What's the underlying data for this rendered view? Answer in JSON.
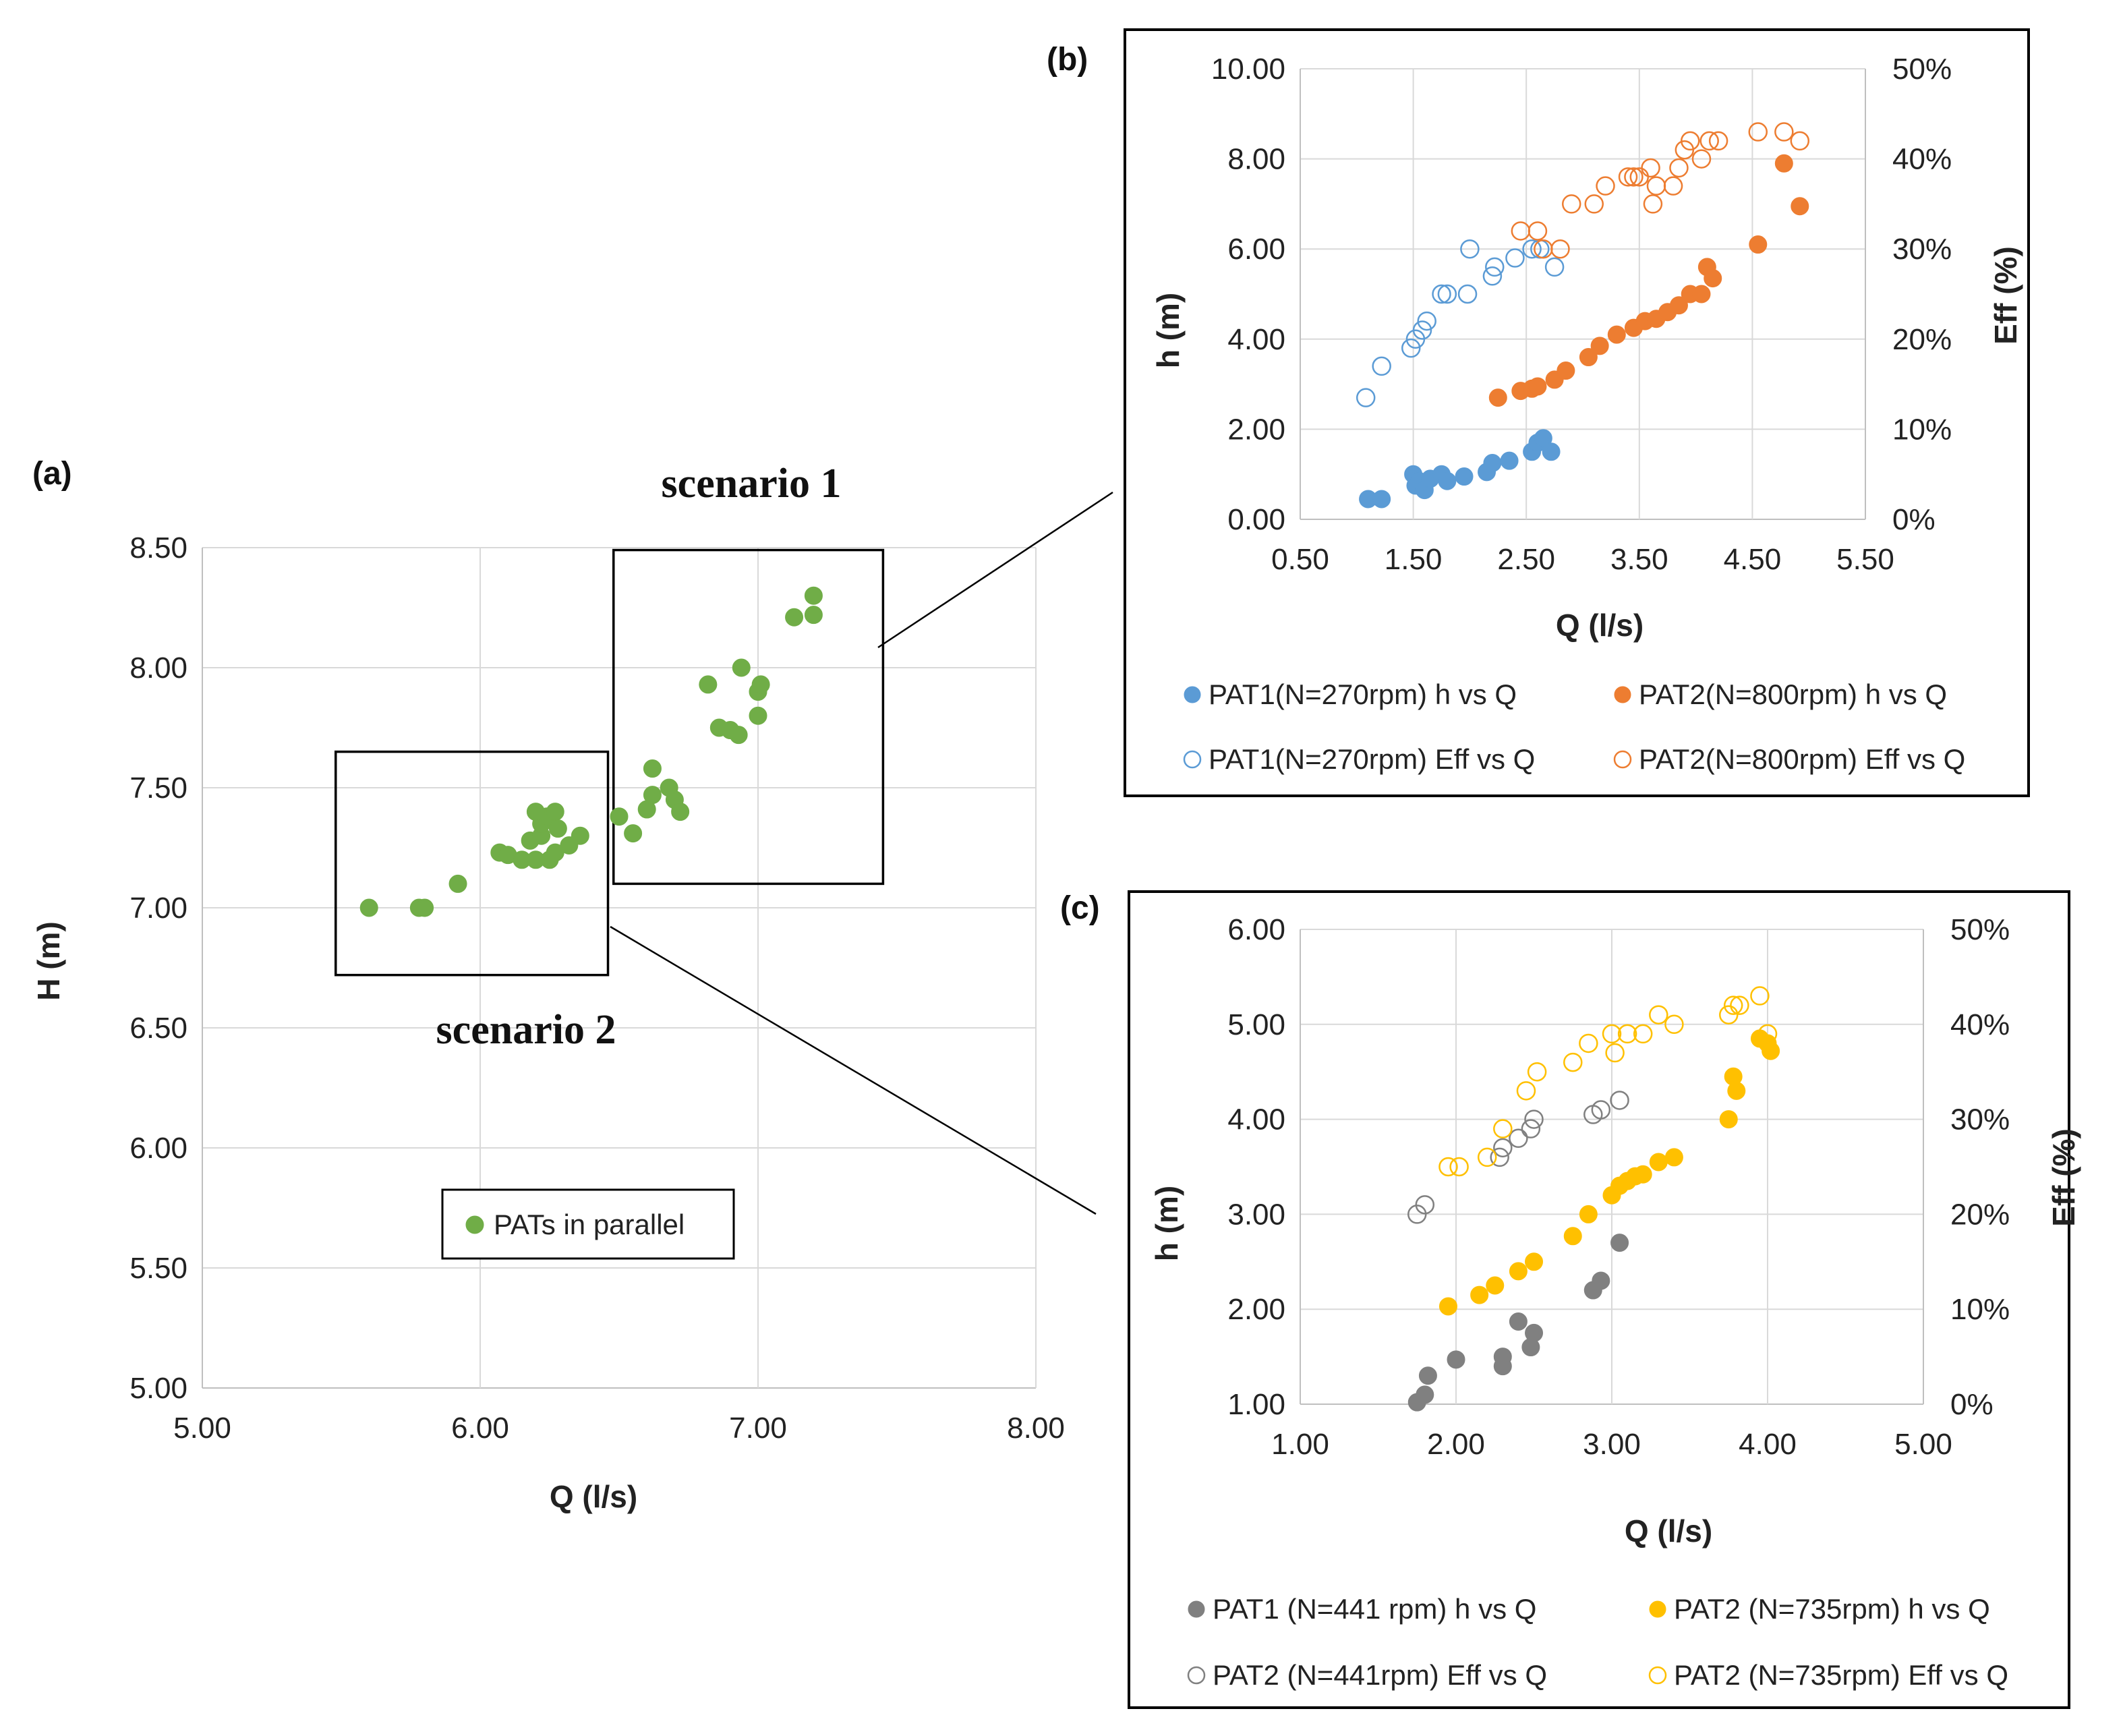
{
  "colors": {
    "green": "#70AD47",
    "blue": "#5B9BD5",
    "orange": "#ED7D31",
    "gray": "#808080",
    "gold": "#FFC000"
  },
  "chart_data": [
    {
      "id": "a",
      "panel_label": "(a)",
      "type": "scatter",
      "xlabel": "Q (l/s)",
      "ylabel": "H (m)",
      "xlim": [
        5.0,
        8.0
      ],
      "ylim": [
        5.0,
        8.5
      ],
      "xticks": [
        "5.00",
        "6.00",
        "7.00",
        "8.00"
      ],
      "yticks": [
        "5.00",
        "5.50",
        "6.00",
        "6.50",
        "7.00",
        "7.50",
        "8.00",
        "8.50"
      ],
      "annotations": {
        "scenario1": "scenario 1",
        "scenario2": "scenario 2"
      },
      "scenario_boxes": [
        {
          "name": "scenario 1",
          "x": [
            6.48,
            7.45
          ],
          "y": [
            7.1,
            8.49
          ]
        },
        {
          "name": "scenario 2",
          "x": [
            5.48,
            6.46
          ],
          "y": [
            6.72,
            7.65
          ]
        }
      ],
      "series": [
        {
          "name": "PATs in parallel",
          "color": "#70AD47",
          "filled": true,
          "points": [
            [
              5.6,
              7.0
            ],
            [
              5.78,
              7.0
            ],
            [
              5.8,
              7.0
            ],
            [
              5.92,
              7.1
            ],
            [
              6.07,
              7.23
            ],
            [
              6.1,
              7.22
            ],
            [
              6.15,
              7.2
            ],
            [
              6.2,
              7.2
            ],
            [
              6.18,
              7.28
            ],
            [
              6.22,
              7.3
            ],
            [
              6.25,
              7.2
            ],
            [
              6.27,
              7.23
            ],
            [
              6.22,
              7.35
            ],
            [
              6.24,
              7.38
            ],
            [
              6.2,
              7.4
            ],
            [
              6.27,
              7.4
            ],
            [
              6.28,
              7.33
            ],
            [
              6.32,
              7.26
            ],
            [
              6.36,
              7.3
            ],
            [
              6.5,
              7.38
            ],
            [
              6.55,
              7.31
            ],
            [
              6.6,
              7.41
            ],
            [
              6.62,
              7.47
            ],
            [
              6.62,
              7.58
            ],
            [
              6.68,
              7.5
            ],
            [
              6.7,
              7.45
            ],
            [
              6.72,
              7.4
            ],
            [
              6.82,
              7.93
            ],
            [
              6.86,
              7.75
            ],
            [
              6.9,
              7.74
            ],
            [
              6.93,
              7.72
            ],
            [
              6.94,
              8.0
            ],
            [
              7.0,
              7.8
            ],
            [
              7.0,
              7.9
            ],
            [
              7.01,
              7.93
            ],
            [
              7.13,
              8.21
            ],
            [
              7.2,
              8.22
            ],
            [
              7.2,
              8.3
            ]
          ]
        }
      ]
    },
    {
      "id": "b",
      "panel_label": "(b)",
      "type": "scatter",
      "xlabel": "Q (l/s)",
      "ylabel": "h (m)",
      "y2label": "Eff (%)",
      "xlim": [
        0.5,
        5.5
      ],
      "ylim": [
        0.0,
        10.0
      ],
      "y2lim": [
        0,
        50
      ],
      "xticks": [
        "0.50",
        "1.50",
        "2.50",
        "3.50",
        "4.50",
        "5.50"
      ],
      "yticks": [
        "0.00",
        "2.00",
        "4.00",
        "6.00",
        "8.00",
        "10.00"
      ],
      "y2ticks": [
        "0%",
        "10%",
        "20%",
        "30%",
        "40%",
        "50%"
      ],
      "series": [
        {
          "name": "PAT1(N=270rpm) h vs Q",
          "color": "#5B9BD5",
          "filled": true,
          "axis": "left",
          "points": [
            [
              1.1,
              0.45
            ],
            [
              1.22,
              0.45
            ],
            [
              1.5,
              1.0
            ],
            [
              1.52,
              0.75
            ],
            [
              1.55,
              0.85
            ],
            [
              1.6,
              0.65
            ],
            [
              1.65,
              0.9
            ],
            [
              1.75,
              1.0
            ],
            [
              1.8,
              0.85
            ],
            [
              1.95,
              0.95
            ],
            [
              2.15,
              1.05
            ],
            [
              2.2,
              1.25
            ],
            [
              2.35,
              1.3
            ],
            [
              2.55,
              1.5
            ],
            [
              2.6,
              1.7
            ],
            [
              2.65,
              1.8
            ],
            [
              2.72,
              1.5
            ]
          ]
        },
        {
          "name": "PAT2(N=800rpm) h vs Q",
          "color": "#ED7D31",
          "filled": true,
          "axis": "left",
          "points": [
            [
              2.25,
              2.7
            ],
            [
              2.45,
              2.85
            ],
            [
              2.55,
              2.9
            ],
            [
              2.6,
              2.95
            ],
            [
              2.75,
              3.1
            ],
            [
              2.85,
              3.3
            ],
            [
              3.05,
              3.6
            ],
            [
              3.15,
              3.85
            ],
            [
              3.3,
              4.1
            ],
            [
              3.45,
              4.25
            ],
            [
              3.55,
              4.4
            ],
            [
              3.65,
              4.45
            ],
            [
              3.75,
              4.6
            ],
            [
              3.85,
              4.75
            ],
            [
              3.95,
              5.0
            ],
            [
              4.05,
              5.0
            ],
            [
              4.1,
              5.6
            ],
            [
              4.15,
              5.35
            ],
            [
              4.55,
              6.1
            ],
            [
              4.78,
              7.9
            ],
            [
              4.92,
              6.95
            ]
          ]
        },
        {
          "name": "PAT1(N=270rpm) Eff vs Q",
          "color": "#5B9BD5",
          "filled": false,
          "axis": "right",
          "points": [
            [
              1.08,
              13.5
            ],
            [
              1.22,
              17
            ],
            [
              1.48,
              19
            ],
            [
              1.52,
              20
            ],
            [
              1.58,
              21
            ],
            [
              1.62,
              22
            ],
            [
              1.75,
              25
            ],
            [
              1.8,
              25
            ],
            [
              1.98,
              25
            ],
            [
              2.0,
              30
            ],
            [
              2.2,
              27
            ],
            [
              2.22,
              28
            ],
            [
              2.4,
              29
            ],
            [
              2.55,
              30
            ],
            [
              2.62,
              30
            ],
            [
              2.75,
              28
            ]
          ]
        },
        {
          "name": "PAT2(N=800rpm) Eff vs Q",
          "color": "#ED7D31",
          "filled": false,
          "axis": "right",
          "points": [
            [
              2.45,
              32
            ],
            [
              2.6,
              32
            ],
            [
              2.65,
              30
            ],
            [
              2.8,
              30
            ],
            [
              2.9,
              35
            ],
            [
              3.1,
              35
            ],
            [
              3.2,
              37
            ],
            [
              3.4,
              38
            ],
            [
              3.45,
              38
            ],
            [
              3.5,
              38
            ],
            [
              3.6,
              39
            ],
            [
              3.62,
              35
            ],
            [
              3.65,
              37
            ],
            [
              3.8,
              37
            ],
            [
              3.85,
              39
            ],
            [
              3.9,
              41
            ],
            [
              3.95,
              42
            ],
            [
              4.05,
              40
            ],
            [
              4.12,
              42
            ],
            [
              4.2,
              42
            ],
            [
              4.55,
              43
            ],
            [
              4.78,
              43
            ],
            [
              4.92,
              42
            ]
          ]
        }
      ]
    },
    {
      "id": "c",
      "panel_label": "(c)",
      "type": "scatter",
      "xlabel": "Q (l/s)",
      "ylabel": "h (m)",
      "y2label": "Eff (%)",
      "xlim": [
        1.0,
        5.0
      ],
      "ylim": [
        1.0,
        6.0
      ],
      "y2lim": [
        0,
        50
      ],
      "xticks": [
        "1.00",
        "2.00",
        "3.00",
        "4.00",
        "5.00"
      ],
      "yticks": [
        "1.00",
        "2.00",
        "3.00",
        "4.00",
        "5.00",
        "6.00"
      ],
      "y2ticks": [
        "0%",
        "10%",
        "20%",
        "30%",
        "40%",
        "50%"
      ],
      "series": [
        {
          "name": "PAT1 (N=441 rpm) h vs Q",
          "color": "#808080",
          "filled": true,
          "axis": "left",
          "points": [
            [
              1.75,
              1.02
            ],
            [
              1.8,
              1.1
            ],
            [
              1.82,
              1.3
            ],
            [
              2.0,
              1.47
            ],
            [
              2.3,
              1.4
            ],
            [
              2.3,
              1.5
            ],
            [
              2.4,
              1.87
            ],
            [
              2.48,
              1.6
            ],
            [
              2.5,
              1.75
            ],
            [
              2.88,
              2.2
            ],
            [
              2.93,
              2.3
            ],
            [
              3.05,
              2.7
            ]
          ]
        },
        {
          "name": "PAT2 (N=735rpm) h vs Q",
          "color": "#FFC000",
          "filled": true,
          "axis": "left",
          "points": [
            [
              1.95,
              2.03
            ],
            [
              2.15,
              2.15
            ],
            [
              2.25,
              2.25
            ],
            [
              2.4,
              2.4
            ],
            [
              2.5,
              2.5
            ],
            [
              2.75,
              2.77
            ],
            [
              2.85,
              3.0
            ],
            [
              3.0,
              3.2
            ],
            [
              3.05,
              3.3
            ],
            [
              3.1,
              3.35
            ],
            [
              3.15,
              3.4
            ],
            [
              3.2,
              3.42
            ],
            [
              3.3,
              3.55
            ],
            [
              3.4,
              3.6
            ],
            [
              3.75,
              4.0
            ],
            [
              3.78,
              4.45
            ],
            [
              3.8,
              4.3
            ],
            [
              3.95,
              4.85
            ],
            [
              4.0,
              4.8
            ],
            [
              4.02,
              4.72
            ]
          ]
        },
        {
          "name": "PAT2 (N=441rpm) Eff vs Q",
          "color": "#808080",
          "filled": false,
          "axis": "right",
          "points": [
            [
              1.75,
              20
            ],
            [
              1.8,
              21
            ],
            [
              2.28,
              26
            ],
            [
              2.3,
              27
            ],
            [
              2.4,
              28
            ],
            [
              2.48,
              29
            ],
            [
              2.5,
              30
            ],
            [
              2.88,
              30.5
            ],
            [
              2.93,
              31
            ],
            [
              3.05,
              32
            ]
          ]
        },
        {
          "name": "PAT2 (N=735rpm) Eff vs Q",
          "color": "#FFC000",
          "filled": false,
          "axis": "right",
          "points": [
            [
              1.95,
              25
            ],
            [
              2.02,
              25
            ],
            [
              2.2,
              26
            ],
            [
              2.3,
              29
            ],
            [
              2.45,
              33
            ],
            [
              2.52,
              35
            ],
            [
              2.75,
              36
            ],
            [
              2.85,
              38
            ],
            [
              3.0,
              39
            ],
            [
              3.02,
              37
            ],
            [
              3.1,
              39
            ],
            [
              3.2,
              39
            ],
            [
              3.3,
              41
            ],
            [
              3.4,
              40
            ],
            [
              3.75,
              41
            ],
            [
              3.78,
              42
            ],
            [
              3.82,
              42
            ],
            [
              3.95,
              43
            ],
            [
              4.0,
              39
            ]
          ]
        }
      ]
    }
  ]
}
